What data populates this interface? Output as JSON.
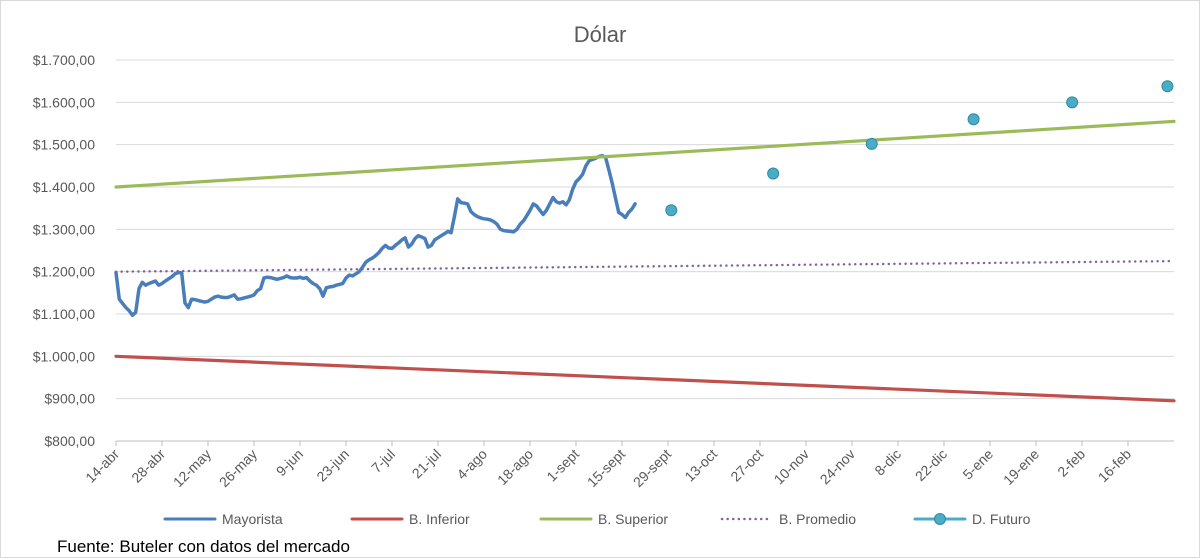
{
  "chart_data": {
    "type": "line",
    "title": "Dólar",
    "xlabel": "",
    "ylabel": "",
    "ylim": [
      800,
      1700
    ],
    "y_ticks": [
      "$800,00",
      "$900,00",
      "$1.000,00",
      "$1.100,00",
      "$1.200,00",
      "$1.300,00",
      "$1.400,00",
      "$1.500,00",
      "$1.600,00",
      "$1.700,00"
    ],
    "x_start": "14-abr",
    "x_end": "2-mar",
    "x_ticks": [
      "14-abr",
      "28-abr",
      "12-may",
      "26-may",
      "9-jun",
      "23-jun",
      "7-jul",
      "21-jul",
      "4-ago",
      "18-ago",
      "1-sept",
      "15-sept",
      "29-sept",
      "13-oct",
      "27-oct",
      "10-nov",
      "24-nov",
      "8-dic",
      "22-dic",
      "5-ene",
      "19-ene",
      "2-feb",
      "16-feb"
    ],
    "grid": "horizontal",
    "legend_position": "bottom",
    "series": [
      {
        "name": "Mayorista",
        "color": "#4a7ebb",
        "style": "solid",
        "points": [
          [
            "14-abr",
            1198
          ],
          [
            "15-abr",
            1135
          ],
          [
            "16-abr",
            1125
          ],
          [
            "17-abr",
            1115
          ],
          [
            "18-abr",
            1108
          ],
          [
            "19-abr",
            1097
          ],
          [
            "20-abr",
            1104
          ],
          [
            "21-abr",
            1160
          ],
          [
            "22-abr",
            1175
          ],
          [
            "23-abr",
            1168
          ],
          [
            "24-abr",
            1172
          ],
          [
            "25-abr",
            1175
          ],
          [
            "26-abr",
            1178
          ],
          [
            "27-abr",
            1168
          ],
          [
            "28-abr",
            1172
          ],
          [
            "29-abr",
            1178
          ],
          [
            "30-abr",
            1183
          ],
          [
            "1-may",
            1188
          ],
          [
            "2-may",
            1195
          ],
          [
            "3-may",
            1198
          ],
          [
            "4-may",
            1197
          ],
          [
            "5-may",
            1126
          ],
          [
            "6-may",
            1115
          ],
          [
            "7-may",
            1135
          ],
          [
            "8-may",
            1134
          ],
          [
            "9-may",
            1132
          ],
          [
            "10-may",
            1130
          ],
          [
            "11-may",
            1128
          ],
          [
            "12-may",
            1130
          ],
          [
            "13-may",
            1135
          ],
          [
            "14-may",
            1140
          ],
          [
            "15-may",
            1142
          ],
          [
            "16-may",
            1140
          ],
          [
            "17-may",
            1139
          ],
          [
            "18-may",
            1139
          ],
          [
            "19-may",
            1142
          ],
          [
            "20-may",
            1145
          ],
          [
            "21-may",
            1135
          ],
          [
            "22-may",
            1136
          ],
          [
            "23-may",
            1138
          ],
          [
            "24-may",
            1140
          ],
          [
            "25-may",
            1142
          ],
          [
            "26-may",
            1145
          ],
          [
            "27-may",
            1155
          ],
          [
            "28-may",
            1160
          ],
          [
            "29-may",
            1185
          ],
          [
            "30-may",
            1187
          ],
          [
            "31-may",
            1186
          ],
          [
            "1-jun",
            1184
          ],
          [
            "2-jun",
            1182
          ],
          [
            "3-jun",
            1184
          ],
          [
            "4-jun",
            1186
          ],
          [
            "5-jun",
            1190
          ],
          [
            "6-jun",
            1186
          ],
          [
            "7-jun",
            1185
          ],
          [
            "8-jun",
            1185
          ],
          [
            "9-jun",
            1187
          ],
          [
            "10-jun",
            1184
          ],
          [
            "11-jun",
            1186
          ],
          [
            "12-jun",
            1178
          ],
          [
            "13-jun",
            1172
          ],
          [
            "14-jun",
            1168
          ],
          [
            "15-jun",
            1160
          ],
          [
            "16-jun",
            1142
          ],
          [
            "17-jun",
            1162
          ],
          [
            "18-jun",
            1164
          ],
          [
            "19-jun",
            1165
          ],
          [
            "20-jun",
            1168
          ],
          [
            "21-jun",
            1170
          ],
          [
            "22-jun",
            1172
          ],
          [
            "23-jun",
            1185
          ],
          [
            "24-jun",
            1192
          ],
          [
            "25-jun",
            1190
          ],
          [
            "26-jun",
            1195
          ],
          [
            "27-jun",
            1200
          ],
          [
            "28-jun",
            1210
          ],
          [
            "29-jun",
            1222
          ],
          [
            "30-jun",
            1228
          ],
          [
            "1-jul",
            1232
          ],
          [
            "2-jul",
            1238
          ],
          [
            "3-jul",
            1245
          ],
          [
            "4-jul",
            1255
          ],
          [
            "5-jul",
            1262
          ],
          [
            "6-jul",
            1256
          ],
          [
            "7-jul",
            1255
          ],
          [
            "8-jul",
            1262
          ],
          [
            "9-jul",
            1268
          ],
          [
            "10-jul",
            1275
          ],
          [
            "11-jul",
            1280
          ],
          [
            "12-jul",
            1258
          ],
          [
            "13-jul",
            1265
          ],
          [
            "14-jul",
            1278
          ],
          [
            "15-jul",
            1285
          ],
          [
            "16-jul",
            1282
          ],
          [
            "17-jul",
            1278
          ],
          [
            "18-jul",
            1258
          ],
          [
            "19-jul",
            1262
          ],
          [
            "20-jul",
            1275
          ],
          [
            "21-jul",
            1280
          ],
          [
            "22-jul",
            1285
          ],
          [
            "23-jul",
            1290
          ],
          [
            "24-jul",
            1295
          ],
          [
            "25-jul",
            1292
          ],
          [
            "26-jul",
            1330
          ],
          [
            "27-jul",
            1372
          ],
          [
            "28-jul",
            1363
          ],
          [
            "29-jul",
            1362
          ],
          [
            "30-jul",
            1360
          ],
          [
            "31-jul",
            1342
          ],
          [
            "1-ago",
            1335
          ],
          [
            "2-ago",
            1330
          ],
          [
            "3-ago",
            1327
          ],
          [
            "4-ago",
            1325
          ],
          [
            "5-ago",
            1324
          ],
          [
            "6-ago",
            1322
          ],
          [
            "7-ago",
            1318
          ],
          [
            "8-ago",
            1312
          ],
          [
            "9-ago",
            1300
          ],
          [
            "10-ago",
            1297
          ],
          [
            "11-ago",
            1296
          ],
          [
            "12-ago",
            1295
          ],
          [
            "13-ago",
            1294
          ],
          [
            "14-ago",
            1300
          ],
          [
            "15-ago",
            1312
          ],
          [
            "16-ago",
            1320
          ],
          [
            "17-ago",
            1332
          ],
          [
            "18-ago",
            1345
          ],
          [
            "19-ago",
            1360
          ],
          [
            "20-ago",
            1355
          ],
          [
            "21-ago",
            1345
          ],
          [
            "22-ago",
            1335
          ],
          [
            "23-ago",
            1345
          ],
          [
            "24-ago",
            1360
          ],
          [
            "25-ago",
            1375
          ],
          [
            "26-ago",
            1365
          ],
          [
            "27-ago",
            1362
          ],
          [
            "28-ago",
            1365
          ],
          [
            "29-ago",
            1358
          ],
          [
            "30-ago",
            1370
          ],
          [
            "31-ago",
            1395
          ],
          [
            "1-sept",
            1412
          ],
          [
            "2-sept",
            1420
          ],
          [
            "3-sept",
            1430
          ],
          [
            "4-sept",
            1450
          ],
          [
            "5-sept",
            1462
          ],
          [
            "6-sept",
            1465
          ],
          [
            "7-sept",
            1468
          ],
          [
            "8-sept",
            1472
          ],
          [
            "9-sept",
            1474
          ],
          [
            "10-sept",
            1470
          ],
          [
            "11-sept",
            1440
          ],
          [
            "12-sept",
            1410
          ],
          [
            "13-sept",
            1375
          ],
          [
            "14-sept",
            1340
          ],
          [
            "15-sept",
            1335
          ],
          [
            "16-sept",
            1328
          ],
          [
            "17-sept",
            1340
          ],
          [
            "18-sept",
            1348
          ],
          [
            "19-sept",
            1360
          ]
        ]
      },
      {
        "name": "B. Inferior",
        "color": "#c0504d",
        "style": "solid",
        "points": [
          [
            "14-abr",
            1000
          ],
          [
            "2-mar",
            895
          ]
        ]
      },
      {
        "name": "B. Superior",
        "color": "#9bbb59",
        "style": "solid",
        "points": [
          [
            "14-abr",
            1400
          ],
          [
            "2-mar",
            1555
          ]
        ]
      },
      {
        "name": "B. Promedio",
        "color": "#8064a2",
        "style": "dotted",
        "points": [
          [
            "14-abr",
            1200
          ],
          [
            "2-mar",
            1225
          ]
        ]
      },
      {
        "name": "D. Futuro",
        "color": "#4bacc6",
        "style": "markers",
        "points": [
          [
            "30-sept",
            1345
          ],
          [
            "31-oct",
            1432
          ],
          [
            "30-nov",
            1502
          ],
          [
            "31-dic",
            1560
          ],
          [
            "30-ene",
            1600
          ],
          [
            "28-feb",
            1638
          ]
        ]
      }
    ]
  },
  "source_note": "Fuente: Buteler con datos del mercado"
}
